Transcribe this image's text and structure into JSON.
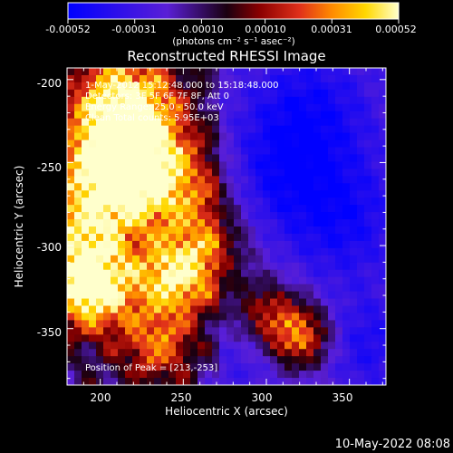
{
  "colorbar": {
    "ticks": [
      "-0.00052",
      "-0.00031",
      "-0.00010",
      "0.00010",
      "0.00031",
      "0.00052"
    ],
    "tick_values": [
      -0.00052,
      -0.00031,
      -0.0001,
      0.0001,
      0.00031,
      0.00052
    ],
    "range": [
      -0.00052,
      0.00052
    ],
    "units_label": "(photons cm⁻² s⁻¹ asec⁻²)",
    "colors": [
      "#0000ff",
      "#5a1fd6",
      "#1a0010",
      "#8b0000",
      "#e0301a",
      "#ff8c00",
      "#ffd700",
      "#ffffcc"
    ]
  },
  "chart_data": {
    "type": "heatmap",
    "title": "Reconstructed RHESSI Image",
    "xlabel": "Heliocentric X (arcsec)",
    "ylabel": "Heliocentric Y (arcsec)",
    "xlim": [
      180,
      372
    ],
    "ylim": [
      -384,
      -193
    ],
    "x_ticks": [
      200,
      250,
      300,
      350
    ],
    "y_ticks": [
      -200,
      -250,
      -300,
      -350
    ],
    "peak_position": [
      213,
      -253
    ],
    "grid": false,
    "annotations": {
      "time_range": "1-May-2012 15:12:48.000 to 15:18:48.000",
      "detectors": "Detectors: 3F 5F 6F 7F 8F, Att 0",
      "energy_range": "Energy Range: 25.0 - 50.0 keV",
      "clean_counts": "Clean    Total counts: 5.95E+03",
      "peak": "Position of Peak = [213,-253]"
    }
  },
  "footer": {
    "timestamp": "10-May-2022 08:08"
  }
}
